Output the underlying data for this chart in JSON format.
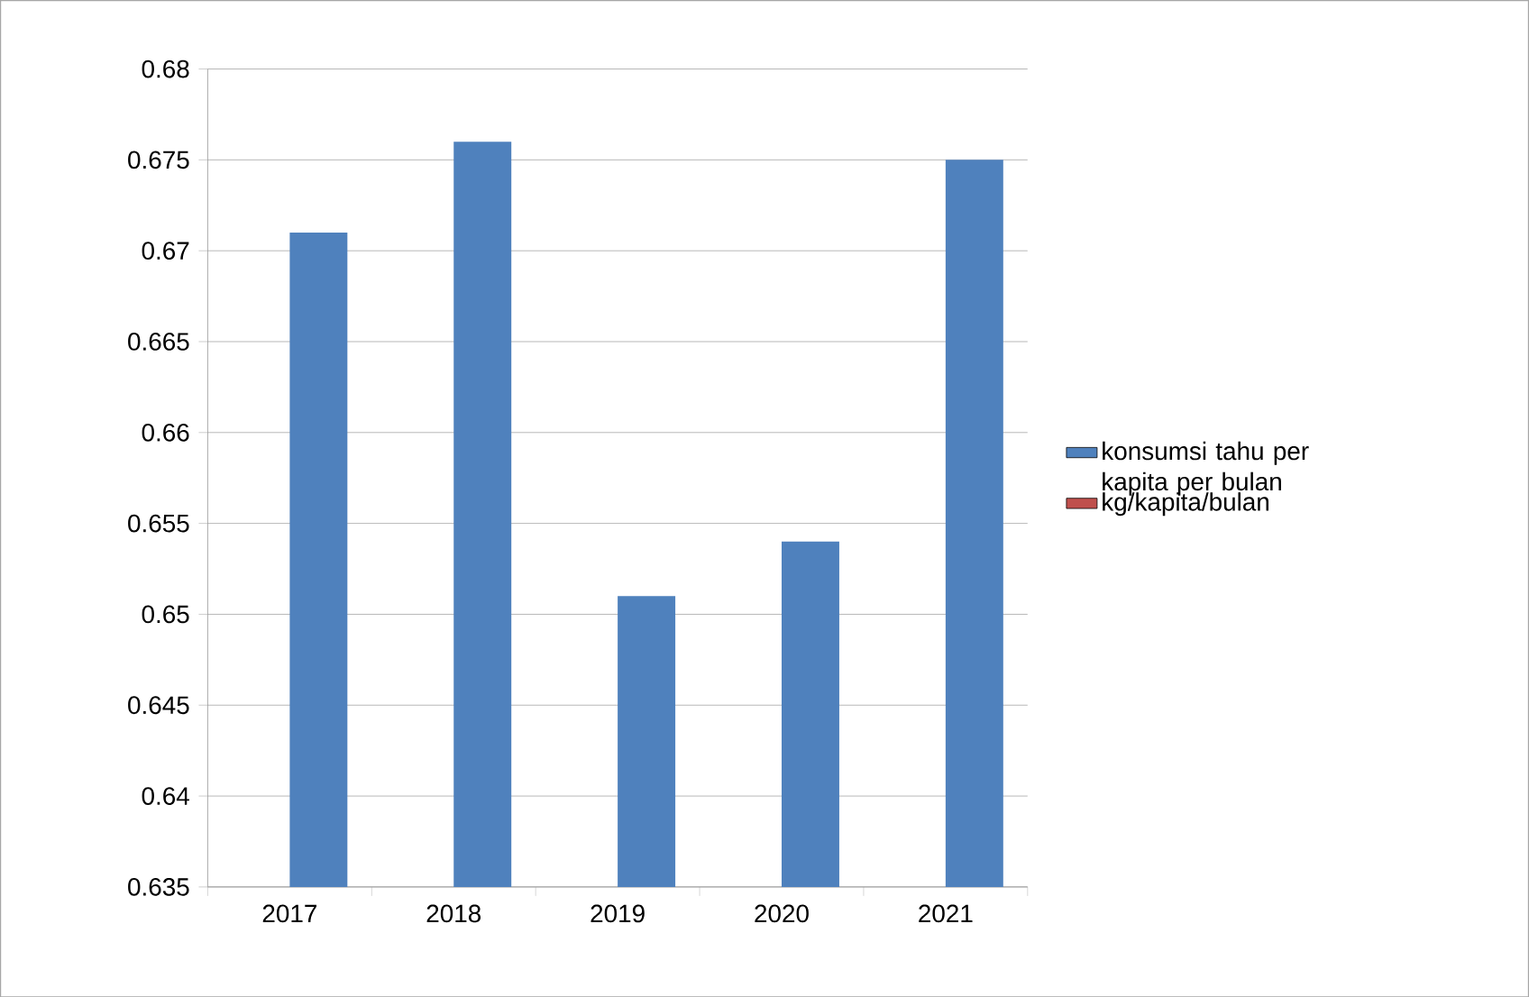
{
  "chart_data": {
    "type": "bar",
    "categories": [
      "2017",
      "2018",
      "2019",
      "2020",
      "2021"
    ],
    "series": [
      {
        "name": "konsumsi tahu per kapita per bulan",
        "color": "#4f81bd",
        "values": [
          0.671,
          0.676,
          0.651,
          0.654,
          0.675
        ]
      },
      {
        "name": "kg/kapita/bulan",
        "color": "#c0504d",
        "values": [
          null,
          null,
          null,
          null,
          null
        ]
      }
    ],
    "ylim": [
      0.635,
      0.68
    ],
    "yticks": [
      0.635,
      0.64,
      0.645,
      0.65,
      0.655,
      0.66,
      0.665,
      0.67,
      0.675,
      0.68
    ],
    "grid": "y",
    "legend": "right"
  }
}
